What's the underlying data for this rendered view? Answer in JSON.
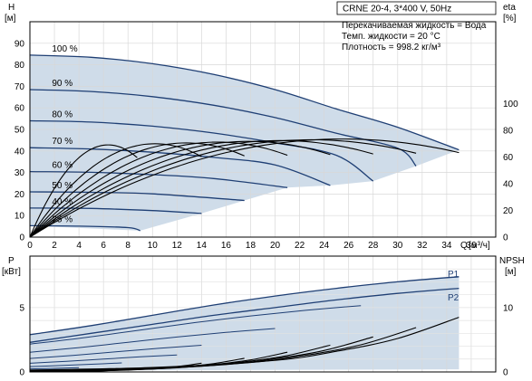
{
  "chart_data": [
    {
      "type": "line",
      "subplot": "head",
      "title": "CRNE 20-4, 3*400 V, 50Hz",
      "annotations": [
        "Перекачиваемая жидкость = Вода",
        "Темп. жидкости = 20 °C",
        "Плотность = 998.2 кг/м³"
      ],
      "ylabel": "H",
      "yunit": "[м]",
      "y2label": "eta",
      "y2unit": "[%]",
      "xlabel": "Q",
      "xunit": "[м³/ч]",
      "xlim": [
        0,
        38
      ],
      "ylim": [
        0,
        100
      ],
      "y2lim": [
        0,
        100
      ],
      "xticks": [
        "0",
        "2",
        "4",
        "6",
        "8",
        "10",
        "12",
        "14",
        "16",
        "18",
        "20",
        "22",
        "24",
        "26",
        "28",
        "30",
        "32",
        "34",
        "36"
      ],
      "yticks": [
        "0",
        "10",
        "20",
        "30",
        "40",
        "50",
        "60",
        "70",
        "80",
        "90"
      ],
      "y2ticks": [
        "0",
        "20",
        "40",
        "60",
        "80",
        "100"
      ],
      "grid": true,
      "region_color": "#cfdce9",
      "curve_color": "#1f3f74",
      "eta_color": "#000000",
      "speed_labels": [
        "100 %",
        "90 %",
        "80 %",
        "70 %",
        "60 %",
        "50 %",
        "40 %",
        "25 %"
      ],
      "speed_fractions": [
        1.0,
        0.9,
        0.8,
        0.7,
        0.6,
        0.5,
        0.4,
        0.25
      ],
      "head_series": [
        {
          "name": "100 %",
          "x": [
            0,
            5,
            10,
            15,
            20,
            25,
            30,
            35
          ],
          "y": [
            84.5,
            83.5,
            80.5,
            75.5,
            68.5,
            59.5,
            51,
            40.5
          ]
        },
        {
          "name": "90 %",
          "x": [
            0,
            5,
            10,
            15,
            20,
            25,
            30,
            31.5
          ],
          "y": [
            68.5,
            67.6,
            65.2,
            61.2,
            55.5,
            48.2,
            41.3,
            33
          ]
        },
        {
          "name": "80 %",
          "x": [
            0,
            5,
            10,
            15,
            20,
            25,
            28
          ],
          "y": [
            54,
            53.4,
            51.5,
            48.3,
            43.8,
            38,
            26
          ]
        },
        {
          "name": "70 %",
          "x": [
            0,
            5,
            10,
            15,
            20,
            24.5
          ],
          "y": [
            41.5,
            40.9,
            39.4,
            37,
            33.5,
            24
          ]
        },
        {
          "name": "60 %",
          "x": [
            0,
            5,
            10,
            15,
            21
          ],
          "y": [
            30.4,
            30.1,
            29,
            27.2,
            23
          ]
        },
        {
          "name": "50 %",
          "x": [
            0,
            5,
            10,
            17.5
          ],
          "y": [
            21,
            20.8,
            20.1,
            17
          ]
        },
        {
          "name": "40 %",
          "x": [
            0,
            5,
            10,
            14
          ],
          "y": [
            13.5,
            13.3,
            12.3,
            11
          ]
        },
        {
          "name": "25 %",
          "x": [
            0,
            4,
            8,
            9
          ],
          "y": [
            5.3,
            5.1,
            4.4,
            3
          ]
        }
      ],
      "eta_series": {
        "bep_flow_100": 25,
        "bep_eta": 72,
        "end_flow_100": 35,
        "end_eta": 60
      }
    },
    {
      "type": "line",
      "subplot": "power_npsh",
      "ylabel": "P",
      "yunit": "[кВт]",
      "y2label": "NPSH",
      "y2unit": "[м]",
      "xlim": [
        0,
        38
      ],
      "ylim": [
        0,
        9
      ],
      "y2lim": [
        0,
        18
      ],
      "yticks": [
        "0",
        "5"
      ],
      "y2ticks": [
        "0",
        "10"
      ],
      "legend_labels": [
        "P1",
        "P2"
      ],
      "power_series": [
        {
          "name": "P1",
          "x": [
            0,
            5,
            10,
            15,
            20,
            25,
            30,
            35
          ],
          "y": [
            2.9,
            3.6,
            4.4,
            5.2,
            5.9,
            6.5,
            7.0,
            7.4
          ]
        },
        {
          "name": "P2",
          "x": [
            0,
            5,
            10,
            15,
            20,
            25,
            30,
            35
          ],
          "y": [
            2.3,
            3.0,
            3.7,
            4.4,
            5.0,
            5.6,
            6.1,
            6.5
          ]
        }
      ],
      "npsh_series": {
        "x": [
          0,
          10,
          20,
          25,
          30,
          35
        ],
        "y": [
          0.3,
          0.7,
          1.8,
          3.2,
          5.2,
          8.5
        ]
      }
    }
  ]
}
